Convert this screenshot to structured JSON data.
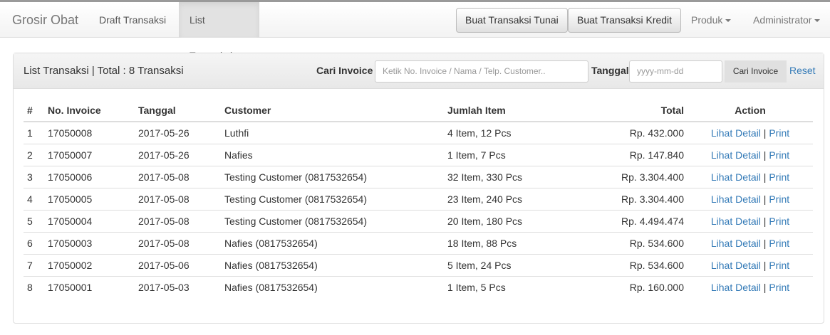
{
  "nav": {
    "brand": "Grosir Obat",
    "links": [
      "Draft Transaksi",
      "List Transaksi"
    ],
    "active": "List Transaksi",
    "buttons": [
      "Buat Transaksi Tunai",
      "Buat Transaksi Kredit"
    ],
    "dropdowns": [
      "Produk",
      "Administrator"
    ]
  },
  "panel": {
    "title": "List Transaksi | Total : 8 Transaksi",
    "search_label": "Cari Invoice",
    "search_placeholder": "Ketik No. Invoice / Nama / Telp. Customer..",
    "date_label": "Tanggal",
    "date_placeholder": "yyyy-mm-dd",
    "search_button": "Cari Invoice",
    "reset": "Reset"
  },
  "table": {
    "headers": [
      "#",
      "No. Invoice",
      "Tanggal",
      "Customer",
      "Jumlah Item",
      "Total",
      "Action"
    ],
    "action_detail": "Lihat Detail",
    "action_sep": "|",
    "action_print": "Print",
    "rows": [
      [
        "1",
        "17050008",
        "2017-05-26",
        "Luthfi",
        "4 Item, 12 Pcs",
        "Rp. 432.000"
      ],
      [
        "2",
        "17050007",
        "2017-05-26",
        "Nafies",
        "1 Item, 7 Pcs",
        "Rp. 147.840"
      ],
      [
        "3",
        "17050006",
        "2017-05-08",
        "Testing Customer (0817532654)",
        "32 Item, 330 Pcs",
        "Rp. 3.304.400"
      ],
      [
        "4",
        "17050005",
        "2017-05-08",
        "Testing Customer (0817532654)",
        "23 Item, 240 Pcs",
        "Rp. 3.304.400"
      ],
      [
        "5",
        "17050004",
        "2017-05-08",
        "Testing Customer (0817532654)",
        "20 Item, 180 Pcs",
        "Rp. 4.494.474"
      ],
      [
        "6",
        "17050003",
        "2017-05-08",
        "Nafies (0817532654)",
        "18 Item, 88 Pcs",
        "Rp. 534.600"
      ],
      [
        "7",
        "17050002",
        "2017-05-06",
        "Nafies (0817532654)",
        "5 Item, 24 Pcs",
        "Rp. 534.600"
      ],
      [
        "8",
        "17050001",
        "2017-05-03",
        "Nafies (0817532654)",
        "1 Item, 5 Pcs",
        "Rp. 160.000"
      ]
    ]
  },
  "colors": {
    "link": "#337ab7"
  }
}
